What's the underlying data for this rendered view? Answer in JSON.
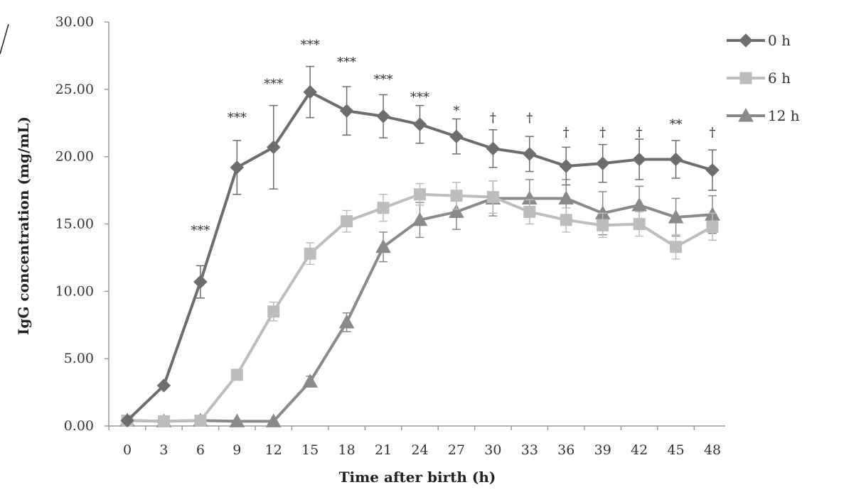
{
  "chart_data": {
    "type": "line",
    "xlabel": "Time after birth (h)",
    "ylabel": "IgG concentration (mg/mL)",
    "x": [
      0,
      3,
      6,
      9,
      12,
      15,
      18,
      21,
      24,
      27,
      30,
      33,
      36,
      39,
      42,
      45,
      48
    ],
    "x_tick_labels": [
      "0",
      "3",
      "6",
      "9",
      "12",
      "15",
      "18",
      "21",
      "24",
      "27",
      "30",
      "33",
      "36",
      "39",
      "42",
      "45",
      "48"
    ],
    "y_tick_labels": [
      "0.00",
      "5.00",
      "10.00",
      "15.00",
      "20.00",
      "25.00",
      "30.00"
    ],
    "ylim": [
      0,
      30
    ],
    "legend_position": "top-right",
    "series": [
      {
        "name": "0 h",
        "marker": "diamond",
        "color": "#6d6d6d",
        "values": [
          0.4,
          3.0,
          10.7,
          19.2,
          20.7,
          24.8,
          23.4,
          23.0,
          22.4,
          21.5,
          20.6,
          20.2,
          19.3,
          19.5,
          19.8,
          19.8,
          19.0
        ],
        "errors": [
          0,
          0,
          1.2,
          2.0,
          3.1,
          1.9,
          1.8,
          1.6,
          1.4,
          1.3,
          1.4,
          1.3,
          1.4,
          1.4,
          1.5,
          1.4,
          1.5
        ]
      },
      {
        "name": "6 h",
        "marker": "square",
        "color": "#bdbdbd",
        "values": [
          0.4,
          0.35,
          0.4,
          3.8,
          8.5,
          12.8,
          15.2,
          16.2,
          17.2,
          17.1,
          17.0,
          15.9,
          15.3,
          14.9,
          15.0,
          13.3,
          14.8
        ],
        "errors": [
          0,
          0,
          0,
          0,
          0.7,
          0.8,
          0.8,
          1.0,
          0.8,
          1.0,
          1.2,
          0.9,
          0.9,
          0.9,
          0.9,
          0.9,
          1.0
        ]
      },
      {
        "name": "12 h",
        "marker": "triangle",
        "color": "#8a8a8a",
        "values": [
          0.4,
          0.35,
          0.4,
          0.35,
          0.35,
          3.3,
          7.7,
          13.3,
          15.3,
          15.9,
          16.9,
          16.9,
          16.9,
          15.8,
          16.4,
          15.5,
          15.7
        ],
        "errors": [
          0,
          0,
          0,
          0,
          0,
          0.4,
          0.7,
          1.1,
          1.3,
          1.3,
          1.3,
          1.4,
          1.4,
          1.6,
          1.4,
          1.4,
          1.4
        ]
      }
    ],
    "annotations": [
      {
        "x": 6,
        "text": "***",
        "y": 14.2
      },
      {
        "x": 9,
        "text": "***",
        "y": 22.6
      },
      {
        "x": 12,
        "text": "***",
        "y": 25.1
      },
      {
        "x": 15,
        "text": "***",
        "y": 28.0
      },
      {
        "x": 18,
        "text": "***",
        "y": 26.7
      },
      {
        "x": 21,
        "text": "***",
        "y": 25.4
      },
      {
        "x": 24,
        "text": "***",
        "y": 24.1
      },
      {
        "x": 27,
        "text": "*",
        "y": 23.1
      },
      {
        "x": 30,
        "text": "†",
        "y": 22.6
      },
      {
        "x": 33,
        "text": "†",
        "y": 22.6
      },
      {
        "x": 36,
        "text": "†",
        "y": 21.5
      },
      {
        "x": 39,
        "text": "†",
        "y": 21.5
      },
      {
        "x": 42,
        "text": "†",
        "y": 21.5
      },
      {
        "x": 45,
        "text": "**",
        "y": 22.1
      },
      {
        "x": 48,
        "text": "†",
        "y": 21.5
      }
    ]
  }
}
